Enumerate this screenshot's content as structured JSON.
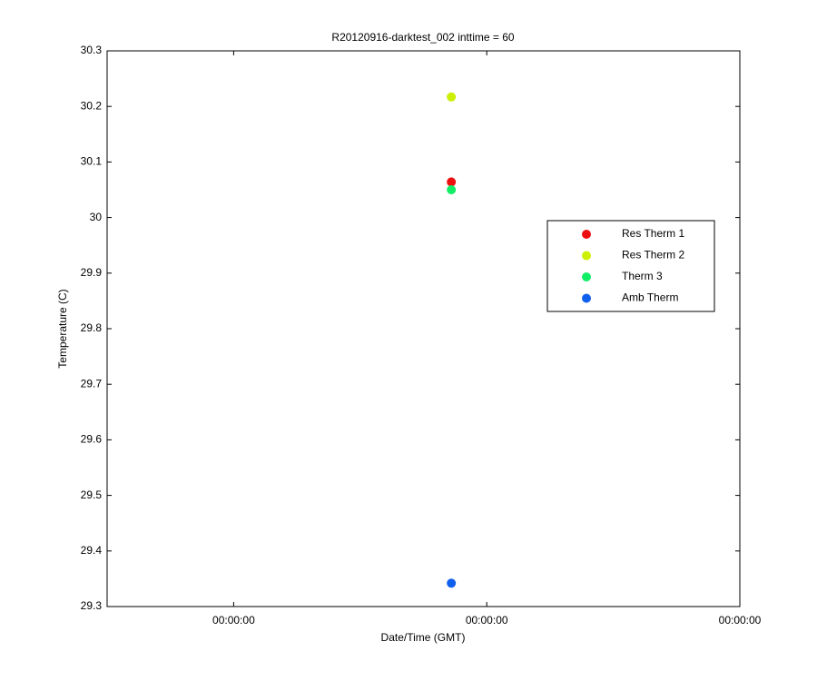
{
  "chart_data": {
    "type": "scatter",
    "title": "R20120916-darktest_002 inttime = 60",
    "x_label": "Date/Time (GMT)",
    "y_label": "Temperature (C)",
    "x": [
      1.86
    ],
    "series": [
      {
        "name": "Res Therm 1",
        "color": "#ee1010",
        "values": [
          30.064
        ]
      },
      {
        "name": "Res Therm 2",
        "color": "#ccf000",
        "values": [
          30.217
        ]
      },
      {
        "name": "Therm 3",
        "color": "#10ee66",
        "values": [
          30.05
        ]
      },
      {
        "name": "Amb Therm",
        "color": "#1060ee",
        "values": [
          29.342
        ]
      }
    ],
    "xlim": [
      0.5,
      3
    ],
    "xticks": [
      {
        "value": 1,
        "label": "00:00:00"
      },
      {
        "value": 2,
        "label": "00:00:00"
      },
      {
        "value": 3,
        "label": "00:00:00"
      }
    ],
    "ylim": [
      29.3,
      30.3
    ],
    "yticks": [
      29.3,
      29.4,
      29.5,
      29.6,
      29.7,
      29.8,
      29.9,
      30,
      30.1,
      30.2,
      30.3
    ],
    "grid": false,
    "legend": "right"
  }
}
